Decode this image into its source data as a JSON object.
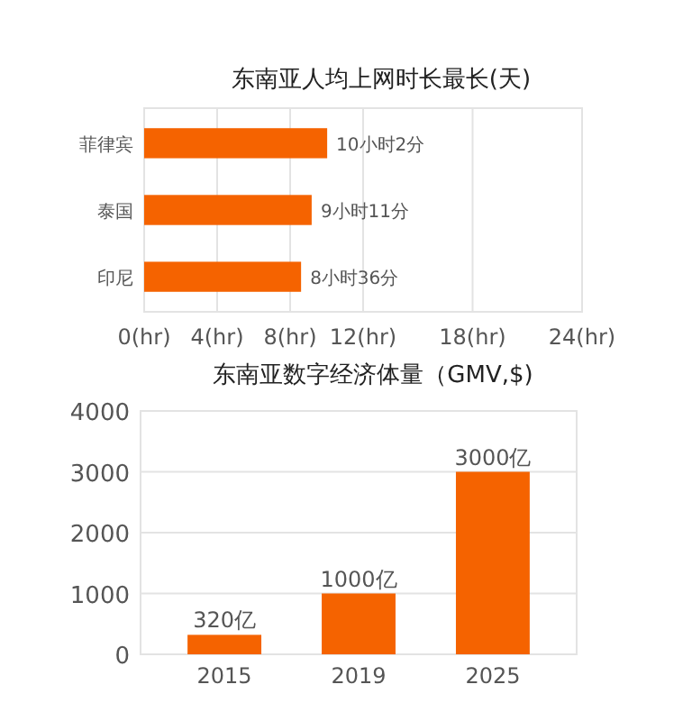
{
  "chart_data": [
    {
      "type": "bar",
      "title": "东南亚人均上网时长最长(天)",
      "orientation": "horizontal",
      "categories": [
        "菲律宾",
        "泰国",
        "印尼"
      ],
      "series": [
        {
          "color": "#f56300",
          "values": [
            10.03,
            9.18,
            8.6
          ]
        }
      ],
      "annotations": [
        {
          "text": "10小时2分",
          "x": 10.03,
          "y": "菲律宾"
        },
        {
          "text": "9小时11分",
          "x": 9.18,
          "y": "泰国"
        },
        {
          "text": "8小时36分",
          "x": 8.6,
          "y": "印尼"
        }
      ],
      "xlim": [
        0,
        24
      ],
      "xticks": [
        {
          "value": 0,
          "label": "0(hr)"
        },
        {
          "value": 4,
          "label": "4(hr)"
        },
        {
          "value": 8,
          "label": "8(hr)"
        },
        {
          "value": 12,
          "label": "12(hr)"
        },
        {
          "value": 18,
          "label": "18(hr)"
        },
        {
          "value": 24,
          "label": "24(hr)"
        }
      ],
      "grid": "x"
    },
    {
      "type": "bar",
      "title": "东南亚数字经济体量（GMV,$)",
      "categories": [
        "2015",
        "2019",
        "2025"
      ],
      "series": [
        {
          "color": "#f56300",
          "values": [
            320,
            1000,
            3000
          ],
          "value_labels": [
            "320亿",
            "1000亿",
            "3000亿"
          ]
        }
      ],
      "ylim": [
        0,
        4000
      ],
      "yticks": [
        0,
        1000,
        2000,
        3000,
        4000
      ],
      "grid": "y"
    }
  ]
}
